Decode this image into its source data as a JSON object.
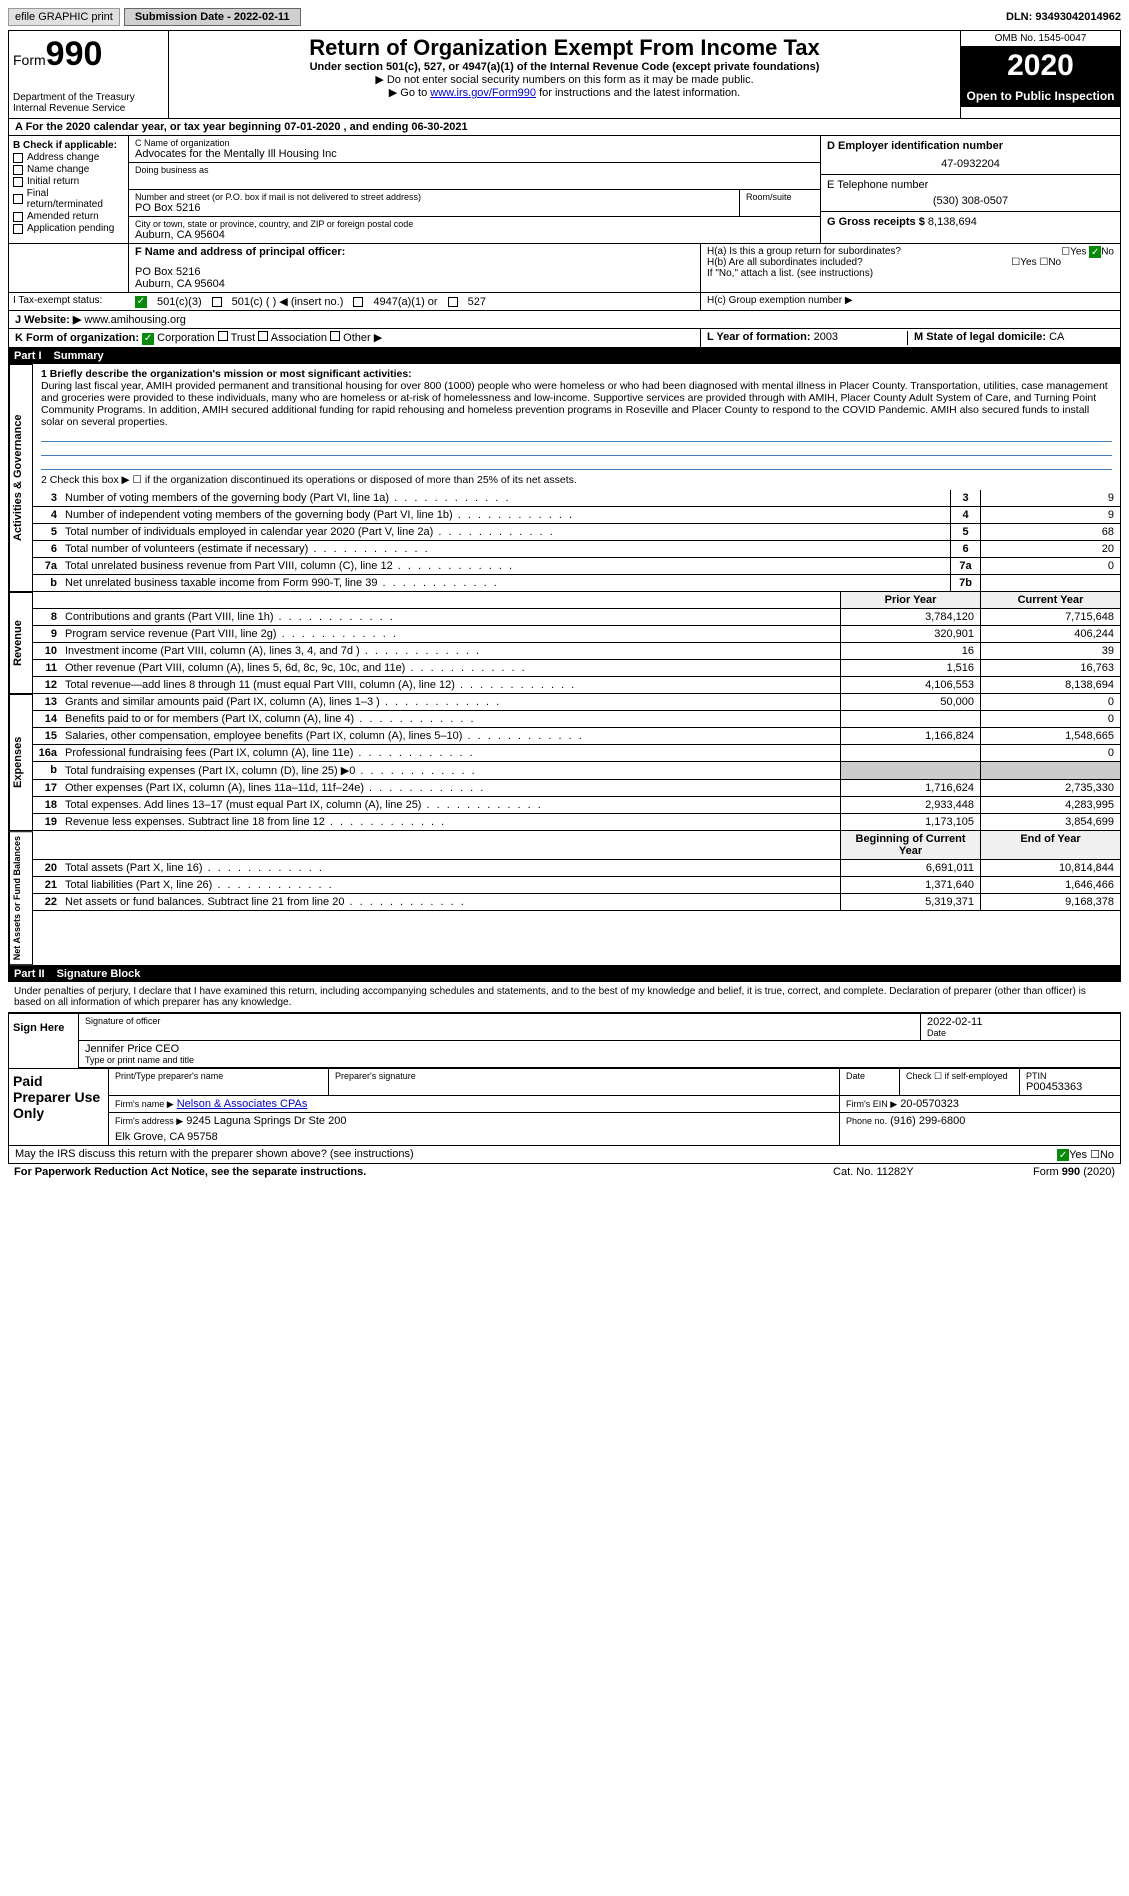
{
  "topbar": {
    "efile": "efile GRAPHIC print",
    "sub_label": "Submission Date - 2022-02-11",
    "dln": "DLN: 93493042014962"
  },
  "header": {
    "form_prefix": "Form",
    "form_num": "990",
    "dept": "Department of the Treasury\nInternal Revenue Service",
    "title": "Return of Organization Exempt From Income Tax",
    "subtitle": "Under section 501(c), 527, or 4947(a)(1) of the Internal Revenue Code (except private foundations)",
    "arrow1": "▶ Do not enter social security numbers on this form as it may be made public.",
    "arrow2_pre": "▶ Go to ",
    "arrow2_link": "www.irs.gov/Form990",
    "arrow2_post": " for instructions and the latest information.",
    "omb": "OMB No. 1545-0047",
    "year": "2020",
    "open": "Open to Public Inspection"
  },
  "period": "A   For the 2020 calendar year, or tax year beginning 07-01-2020     , and ending 06-30-2021",
  "box_b": {
    "title": "B Check if applicable:",
    "items": [
      "Address change",
      "Name change",
      "Initial return",
      "Final return/terminated",
      "Amended return",
      "Application pending"
    ]
  },
  "box_c": {
    "c_label": "C Name of organization",
    "name": "Advocates for the Mentally Ill Housing Inc",
    "dba_label": "Doing business as",
    "addr_label": "Number and street (or P.O. box if mail is not delivered to street address)",
    "addr": "PO Box 5216",
    "room_label": "Room/suite",
    "city_label": "City or town, state or province, country, and ZIP or foreign postal code",
    "city": "Auburn, CA  95604"
  },
  "box_d": {
    "label": "D Employer identification number",
    "val": "47-0932204"
  },
  "box_e": {
    "label": "E Telephone number",
    "val": "(530) 308-0507"
  },
  "box_g": {
    "label": "G Gross receipts $",
    "val": "8,138,694"
  },
  "box_f": {
    "label": "F  Name and address of principal officer:",
    "addr1": "PO Box 5216",
    "addr2": "Auburn, CA  95604"
  },
  "box_h": {
    "ha": "H(a)  Is this a group return for subordinates?",
    "hb": "H(b)  Are all subordinates included?",
    "hb_note": "If \"No,\" attach a list. (see instructions)",
    "hc": "H(c)  Group exemption number ▶",
    "yes": "Yes",
    "no": "No"
  },
  "box_i": {
    "label": "I   Tax-exempt status:",
    "o1": "501(c)(3)",
    "o2": "501(c) (  )  ◀ (insert no.)",
    "o3": "4947(a)(1) or",
    "o4": "527"
  },
  "box_j": {
    "label": "J   Website: ▶",
    "val": "www.amihousing.org"
  },
  "box_k": {
    "label": "K Form of organization:",
    "corp": "Corporation",
    "trust": "Trust",
    "assoc": "Association",
    "other": "Other ▶"
  },
  "box_l": {
    "label": "L Year of formation:",
    "val": "2003"
  },
  "box_m": {
    "label": "M State of legal domicile:",
    "val": "CA"
  },
  "part1": {
    "label": "Part I",
    "title": "Summary"
  },
  "mission": {
    "q1": "1   Briefly describe the organization's mission or most significant activities:",
    "text": "During last fiscal year, AMIH provided permanent and transitional housing for over 800 (1000) people who were homeless or who had been diagnosed with mental illness in Placer County. Transportation, utilities, case management and groceries were provided to these individuals, many who are homeless or at-risk of homelessness and low-income. Supportive services are provided through with AMIH, Placer County Adult System of Care, and Turning Point Community Programs. In addition, AMIH secured additional funding for rapid rehousing and homeless prevention programs in Roseville and Placer County to respond to the COVID Pandemic. AMIH also secured funds to install solar on several properties."
  },
  "q2": "2   Check this box ▶ ☐ if the organization discontinued its operations or disposed of more than 25% of its net assets.",
  "rows_ag": [
    {
      "n": "3",
      "lbl": "Number of voting members of the governing body (Part VI, line 1a)",
      "c": "3",
      "v": "9"
    },
    {
      "n": "4",
      "lbl": "Number of independent voting members of the governing body (Part VI, line 1b)",
      "c": "4",
      "v": "9"
    },
    {
      "n": "5",
      "lbl": "Total number of individuals employed in calendar year 2020 (Part V, line 2a)",
      "c": "5",
      "v": "68"
    },
    {
      "n": "6",
      "lbl": "Total number of volunteers (estimate if necessary)",
      "c": "6",
      "v": "20"
    },
    {
      "n": "7a",
      "lbl": "Total unrelated business revenue from Part VIII, column (C), line 12",
      "c": "7a",
      "v": "0"
    },
    {
      "n": "b",
      "lbl": "Net unrelated business taxable income from Form 990-T, line 39",
      "c": "7b",
      "v": ""
    }
  ],
  "col_hdrs": {
    "py": "Prior Year",
    "cy": "Current Year"
  },
  "rows_rev": [
    {
      "n": "8",
      "lbl": "Contributions and grants (Part VIII, line 1h)",
      "py": "3,784,120",
      "cy": "7,715,648"
    },
    {
      "n": "9",
      "lbl": "Program service revenue (Part VIII, line 2g)",
      "py": "320,901",
      "cy": "406,244"
    },
    {
      "n": "10",
      "lbl": "Investment income (Part VIII, column (A), lines 3, 4, and 7d )",
      "py": "16",
      "cy": "39"
    },
    {
      "n": "11",
      "lbl": "Other revenue (Part VIII, column (A), lines 5, 6d, 8c, 9c, 10c, and 11e)",
      "py": "1,516",
      "cy": "16,763"
    },
    {
      "n": "12",
      "lbl": "Total revenue—add lines 8 through 11 (must equal Part VIII, column (A), line 12)",
      "py": "4,106,553",
      "cy": "8,138,694"
    }
  ],
  "rows_exp": [
    {
      "n": "13",
      "lbl": "Grants and similar amounts paid (Part IX, column (A), lines 1–3 )",
      "py": "50,000",
      "cy": "0"
    },
    {
      "n": "14",
      "lbl": "Benefits paid to or for members (Part IX, column (A), line 4)",
      "py": "",
      "cy": "0"
    },
    {
      "n": "15",
      "lbl": "Salaries, other compensation, employee benefits (Part IX, column (A), lines 5–10)",
      "py": "1,166,824",
      "cy": "1,548,665"
    },
    {
      "n": "16a",
      "lbl": "Professional fundraising fees (Part IX, column (A), line 11e)",
      "py": "",
      "cy": "0"
    },
    {
      "n": "b",
      "lbl": "Total fundraising expenses (Part IX, column (D), line 25) ▶0",
      "py": "",
      "cy": "",
      "gray": true
    },
    {
      "n": "17",
      "lbl": "Other expenses (Part IX, column (A), lines 11a–11d, 11f–24e)",
      "py": "1,716,624",
      "cy": "2,735,330"
    },
    {
      "n": "18",
      "lbl": "Total expenses. Add lines 13–17 (must equal Part IX, column (A), line 25)",
      "py": "2,933,448",
      "cy": "4,283,995"
    },
    {
      "n": "19",
      "lbl": "Revenue less expenses. Subtract line 18 from line 12",
      "py": "1,173,105",
      "cy": "3,854,699"
    }
  ],
  "col_hdrs2": {
    "by": "Beginning of Current Year",
    "ey": "End of Year"
  },
  "rows_na": [
    {
      "n": "20",
      "lbl": "Total assets (Part X, line 16)",
      "py": "6,691,011",
      "cy": "10,814,844"
    },
    {
      "n": "21",
      "lbl": "Total liabilities (Part X, line 26)",
      "py": "1,371,640",
      "cy": "1,646,466"
    },
    {
      "n": "22",
      "lbl": "Net assets or fund balances. Subtract line 21 from line 20",
      "py": "5,319,371",
      "cy": "9,168,378"
    }
  ],
  "vtabs": {
    "ag": "Activities & Governance",
    "rev": "Revenue",
    "exp": "Expenses",
    "na": "Net Assets or Fund Balances"
  },
  "part2": {
    "label": "Part II",
    "title": "Signature Block"
  },
  "sig": {
    "decl": "Under penalties of perjury, I declare that I have examined this return, including accompanying schedules and statements, and to the best of my knowledge and belief, it is true, correct, and complete. Declaration of preparer (other than officer) is based on all information of which preparer has any knowledge.",
    "sign_here": "Sign Here",
    "sig_officer": "Signature of officer",
    "date": "Date",
    "date_val": "2022-02-11",
    "name": "Jennifer Price CEO",
    "name_lbl": "Type or print name and title"
  },
  "prep": {
    "title": "Paid Preparer Use Only",
    "h1": "Print/Type preparer's name",
    "h2": "Preparer's signature",
    "h3": "Date",
    "h4_a": "Check ☐ if self-employed",
    "h5": "PTIN",
    "ptin": "P00453363",
    "firm_lbl": "Firm's name    ▶",
    "firm": "Nelson & Associates CPAs",
    "ein_lbl": "Firm's EIN ▶",
    "ein": "20-0570323",
    "addr_lbl": "Firm's address ▶",
    "addr": "9245 Laguna Springs Dr Ste 200",
    "city": "Elk Grove, CA  95758",
    "phone_lbl": "Phone no.",
    "phone": "(916) 299-6800"
  },
  "footer": {
    "q": "May the IRS discuss this return with the preparer shown above? (see instructions)",
    "yes": "Yes",
    "no": "No",
    "pra": "For Paperwork Reduction Act Notice, see the separate instructions.",
    "cat": "Cat. No. 11282Y",
    "form": "Form 990 (2020)"
  }
}
